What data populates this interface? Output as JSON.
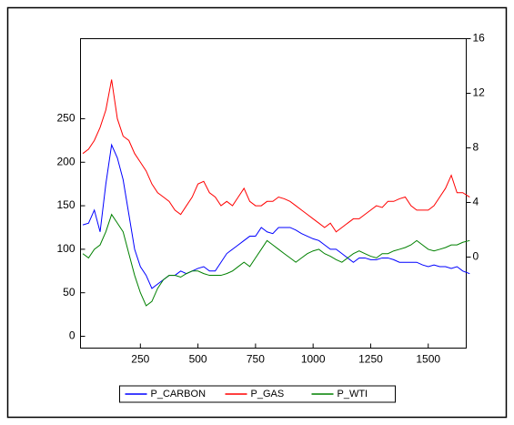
{
  "chart_data": {
    "type": "line",
    "x": [
      0,
      25,
      50,
      75,
      100,
      125,
      150,
      175,
      200,
      225,
      250,
      275,
      300,
      325,
      350,
      375,
      400,
      425,
      450,
      475,
      500,
      525,
      550,
      575,
      600,
      625,
      650,
      675,
      700,
      725,
      750,
      775,
      800,
      825,
      850,
      875,
      900,
      925,
      950,
      975,
      1000,
      1025,
      1050,
      1075,
      1100,
      1125,
      1150,
      1175,
      1200,
      1225,
      1250,
      1275,
      1300,
      1325,
      1350,
      1375,
      1400,
      1425,
      1450,
      1475,
      1500,
      1525,
      1550,
      1575,
      1600,
      1625,
      1650,
      1680
    ],
    "series": [
      {
        "name": "P_CARBON",
        "color": "#0000ff",
        "values": [
          128,
          130,
          145,
          120,
          175,
          220,
          205,
          180,
          140,
          100,
          80,
          70,
          55,
          60,
          65,
          70,
          70,
          75,
          72,
          75,
          78,
          80,
          75,
          75,
          85,
          95,
          100,
          105,
          110,
          115,
          115,
          125,
          120,
          118,
          125,
          125,
          125,
          122,
          118,
          115,
          112,
          110,
          105,
          100,
          100,
          95,
          90,
          85,
          90,
          90,
          88,
          88,
          90,
          90,
          88,
          85,
          85,
          85,
          85,
          82,
          80,
          82,
          80,
          80,
          78,
          80,
          75,
          72
        ]
      },
      {
        "name": "P_GAS",
        "color": "#ff0000",
        "values": [
          210,
          215,
          225,
          240,
          260,
          295,
          250,
          230,
          225,
          210,
          200,
          190,
          175,
          165,
          160,
          155,
          145,
          140,
          150,
          160,
          175,
          178,
          165,
          160,
          150,
          155,
          150,
          160,
          170,
          155,
          150,
          150,
          155,
          155,
          160,
          158,
          155,
          150,
          145,
          140,
          135,
          130,
          125,
          130,
          120,
          125,
          130,
          135,
          135,
          140,
          145,
          150,
          148,
          155,
          155,
          158,
          160,
          150,
          145,
          145,
          145,
          150,
          160,
          170,
          185,
          165,
          165,
          160
        ]
      },
      {
        "name": "P_WTI",
        "color": "#008000",
        "axis": "y2",
        "values": [
          0.25,
          -0.06,
          0.57,
          0.89,
          1.85,
          3.12,
          2.49,
          1.85,
          0.25,
          -1.34,
          -2.61,
          -3.57,
          -3.25,
          -2.29,
          -1.66,
          -1.34,
          -1.34,
          -1.47,
          -1.21,
          -1.02,
          -1.02,
          -1.21,
          -1.34,
          -1.34,
          -1.34,
          -1.21,
          -1.02,
          -0.7,
          -0.38,
          -0.7,
          -0.06,
          0.57,
          1.21,
          0.89,
          0.57,
          0.25,
          -0.06,
          -0.38,
          -0.06,
          0.25,
          0.45,
          0.57,
          0.25,
          0.06,
          -0.19,
          -0.38,
          -0.06,
          0.25,
          0.45,
          0.25,
          0.06,
          -0.06,
          0.25,
          0.25,
          0.45,
          0.57,
          0.7,
          0.89,
          1.21,
          0.89,
          0.57,
          0.45,
          0.57,
          0.7,
          0.89,
          0.89,
          1.08,
          1.21
        ]
      }
    ],
    "xlim": [
      -10,
      1665
    ],
    "xticks": [
      250,
      500,
      750,
      1000,
      1250,
      1500
    ],
    "ylim": [
      -13.6,
      342
    ],
    "yticks": [
      0,
      50,
      100,
      150,
      200,
      250
    ],
    "y2lim": [
      -6.67,
      16
    ],
    "y2ticks": [
      0,
      4,
      8,
      12,
      16
    ],
    "legend": "bottom"
  }
}
